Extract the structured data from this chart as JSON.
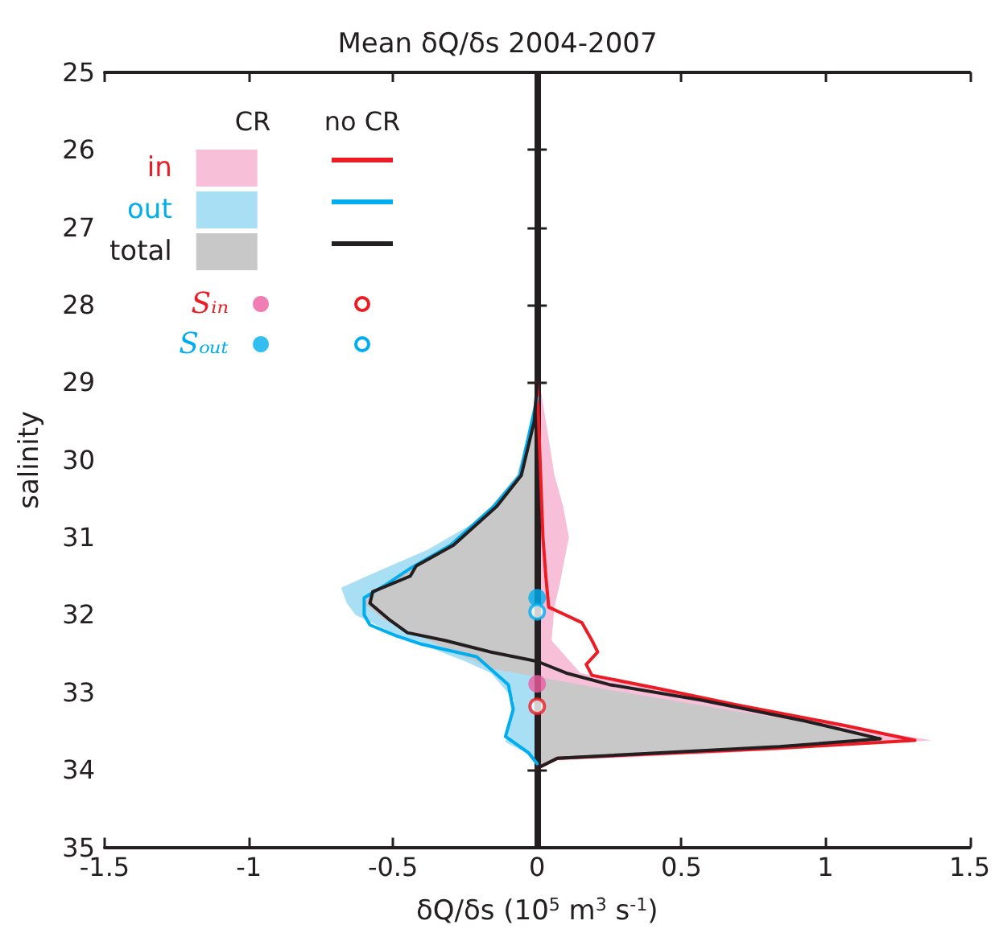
{
  "chart_data": {
    "type": "line",
    "title": "Mean δQ/δs 2004-2007",
    "xlabel": "δQ/δs (10$^{5}$ m$^{3}$ s$^{-1}$)",
    "ylabel": "salinity",
    "annotations": [
      "CR",
      "no CR"
    ],
    "legend": "top left",
    "xlim": [
      -1.5,
      1.5
    ],
    "xticks": [
      -1.5,
      -1,
      -0.5,
      0,
      0.5,
      1,
      1.5
    ],
    "ylim": [
      35,
      25
    ],
    "yticks": [
      25,
      26,
      27,
      28,
      29,
      30,
      31,
      32,
      33,
      34,
      35
    ],
    "ref_lines": [
      {
        "axis": "x",
        "value": 0,
        "color": "#231f20"
      }
    ],
    "series": [
      {
        "name": "in",
        "type": "area",
        "color": "#f7c0d8",
        "x": [
          0,
          0.03,
          0.06,
          0.09,
          0.11,
          0.08,
          0.06,
          0.05,
          0.15,
          0.47,
          0.96,
          1.37,
          0.66,
          0.07,
          0
        ],
        "values": [
          28.8,
          29.5,
          30.2,
          30.6,
          31.0,
          31.57,
          31.9,
          32.33,
          32.75,
          33.0,
          33.37,
          33.62,
          33.78,
          33.88,
          33.98
        ]
      },
      {
        "name": "out",
        "type": "area",
        "color": "#a9dff5",
        "x": [
          0,
          -0.02,
          -0.065,
          -0.19,
          -0.38,
          -0.56,
          -0.68,
          -0.66,
          -0.63,
          -0.48,
          -0.25,
          -0.16,
          -0.08,
          -0.11,
          -0.04,
          0
        ],
        "values": [
          29.0,
          29.5,
          30.2,
          30.75,
          31.16,
          31.45,
          31.65,
          31.85,
          32.0,
          32.27,
          32.6,
          32.75,
          33.1,
          33.64,
          33.78,
          33.92
        ]
      },
      {
        "name": "total",
        "type": "area",
        "color": "#c8c8c9",
        "x": [
          0,
          -0.02,
          -0.07,
          -0.16,
          -0.31,
          -0.44,
          -0.57,
          -0.6,
          -0.53,
          -0.42,
          -0.28,
          -0.15,
          0,
          0.3,
          0.62,
          0.95,
          1.22,
          0.8,
          0.07,
          0
        ],
        "values": [
          29.0,
          29.5,
          30.2,
          30.6,
          31.1,
          31.4,
          31.7,
          31.85,
          32.07,
          32.25,
          32.5,
          32.7,
          32.8,
          33.0,
          33.2,
          33.4,
          33.62,
          33.72,
          33.85,
          33.98
        ]
      },
      {
        "color": "#ed1c24",
        "x": [
          0,
          0.01,
          0.02,
          0.03,
          0.04,
          0.155,
          0.19,
          0.21,
          0.17,
          0.19,
          0.42,
          0.69,
          1.07,
          1.31,
          0.84,
          0.07,
          0
        ],
        "values": [
          29.0,
          30.0,
          31.0,
          31.5,
          31.9,
          32.1,
          32.33,
          32.48,
          32.64,
          32.78,
          32.95,
          33.16,
          33.43,
          33.62,
          33.72,
          33.85,
          33.98
        ]
      },
      {
        "color": "#00aeef",
        "x": [
          0,
          -0.06,
          -0.15,
          -0.3,
          -0.44,
          -0.52,
          -0.6,
          -0.6,
          -0.58,
          -0.49,
          -0.4,
          -0.21,
          -0.1,
          -0.083,
          -0.11,
          -0.03,
          0
        ],
        "values": [
          29.2,
          30.2,
          30.6,
          31.1,
          31.4,
          31.6,
          31.78,
          32.0,
          32.13,
          32.27,
          32.38,
          32.54,
          32.9,
          33.22,
          33.57,
          33.78,
          33.92
        ]
      },
      {
        "color": "#231f20",
        "x": [
          0,
          -0.01,
          -0.055,
          -0.14,
          -0.29,
          -0.42,
          -0.44,
          -0.57,
          -0.58,
          -0.51,
          -0.45,
          -0.32,
          -0.16,
          0,
          0.1,
          0.25,
          0.57,
          0.93,
          1.19,
          0.84,
          0.07,
          0
        ],
        "values": [
          29.0,
          29.5,
          30.2,
          30.6,
          31.1,
          31.37,
          31.5,
          31.7,
          31.85,
          32.07,
          32.23,
          32.33,
          32.48,
          32.6,
          32.75,
          32.9,
          33.1,
          33.37,
          33.6,
          33.7,
          33.85,
          33.98
        ]
      },
      {
        "name": "Sᵢₙ",
        "type": "scatter",
        "marker": "circle",
        "color": "#ec5ca0",
        "x": [
          0
        ],
        "values": [
          32.89
        ]
      },
      {
        "name": "Sₒᵤₜ",
        "type": "scatter",
        "marker": "circle",
        "color": "#00aeef",
        "x": [
          0
        ],
        "values": [
          31.78
        ]
      },
      {
        "type": "scatter",
        "marker": "circle",
        "color": "#ed1c24",
        "x": [
          0
        ],
        "values": [
          33.18
        ]
      },
      {
        "type": "scatter",
        "marker": "circle",
        "color": "#00aeef",
        "x": [
          0
        ],
        "values": [
          31.96
        ]
      }
    ]
  }
}
